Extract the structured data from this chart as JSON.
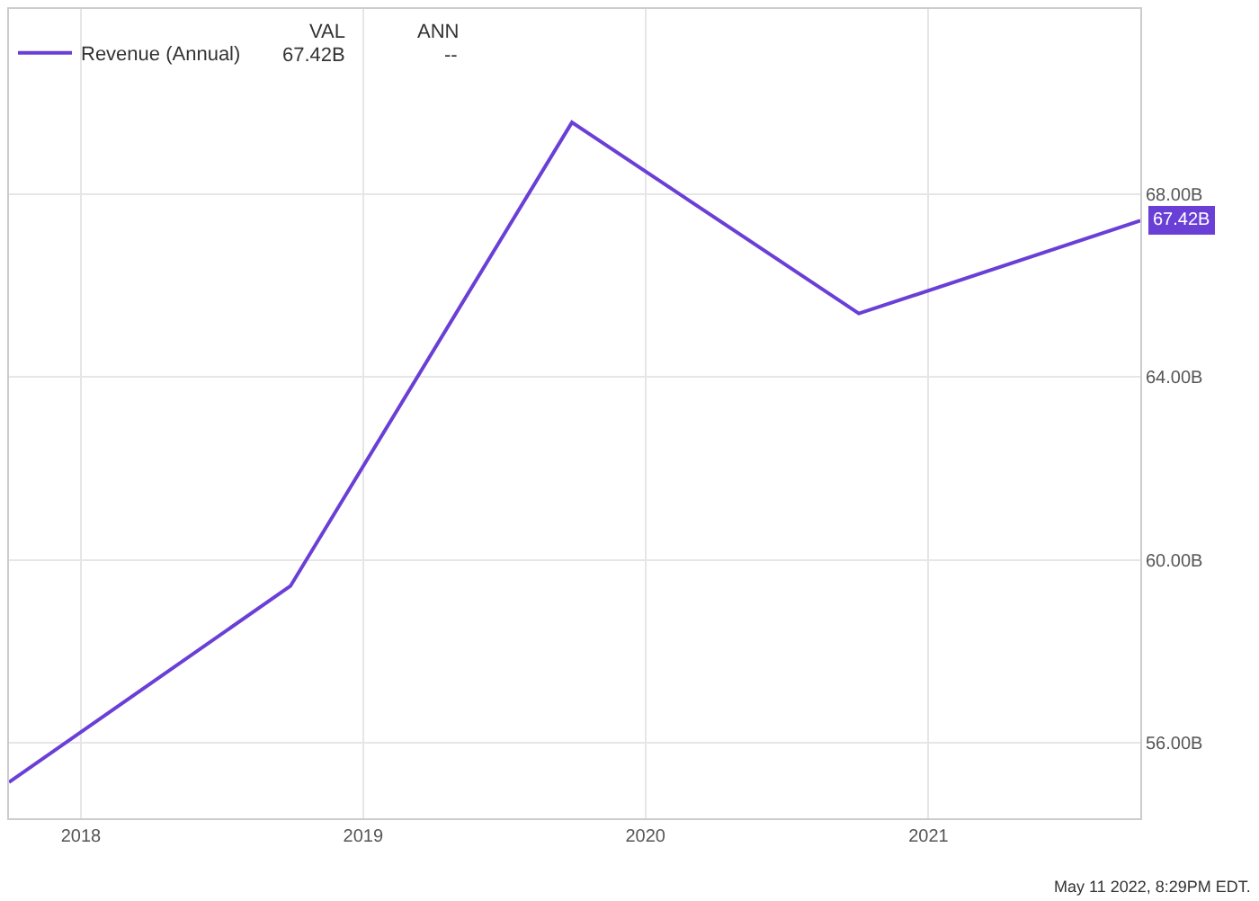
{
  "chart_data": {
    "type": "line",
    "x": [
      "2017-09-30",
      "2018-09-29",
      "2019-09-28",
      "2020-10-03",
      "2021-10-02"
    ],
    "series": [
      {
        "name": "Revenue (Annual)",
        "color": "#6a3fd6",
        "values": [
          55.14,
          59.43,
          69.57,
          65.39,
          67.42
        ],
        "value_labels": [
          null,
          null,
          null,
          null,
          "67.42B"
        ]
      }
    ],
    "xlim": [
      "2017-09-30",
      "2021-10-02"
    ],
    "xticks": [
      {
        "value": "2018-01-01",
        "label": "2018"
      },
      {
        "value": "2019-01-01",
        "label": "2019"
      },
      {
        "value": "2020-01-01",
        "label": "2020"
      },
      {
        "value": "2021-01-01",
        "label": "2021"
      }
    ],
    "ylim": [
      54.35,
      72.05
    ],
    "yticks": [
      {
        "value": 56,
        "label": "56.00B"
      },
      {
        "value": 60,
        "label": "60.00B"
      },
      {
        "value": 64,
        "label": "64.00B"
      },
      {
        "value": 68,
        "label": "68.00B"
      }
    ],
    "grid": true,
    "legend": "top left",
    "marker": "none",
    "line_style": "solid",
    "annotations": [
      "VAL",
      "ANN",
      "67.42B",
      "--",
      "May 11 2022, 8:29PM EDT."
    ]
  }
}
